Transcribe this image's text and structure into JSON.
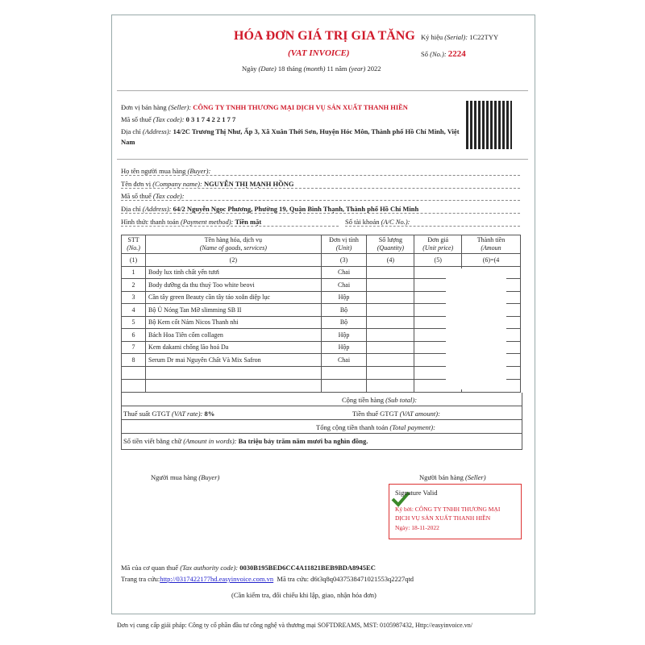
{
  "header": {
    "title": "HÓA ĐƠN GIÁ TRỊ GIA TĂNG",
    "subtitle": "(VAT INVOICE)",
    "serial": {
      "label": "Ký hiệu",
      "label_en": "(Serial):",
      "value": "1C22TYY"
    },
    "number": {
      "label": "Số",
      "label_en": "(No.):",
      "value": "2224"
    },
    "date": {
      "label": "Ngày",
      "label_en": "(Date)",
      "day": "18",
      "month_label": "tháng",
      "month_label_en": "(month)",
      "month": "11",
      "year_label": "năm",
      "year_label_en": "(year)",
      "year": "2022"
    }
  },
  "seller": [
    {
      "label": "Đơn vị bán hàng",
      "label_en": "(Seller):",
      "value": "CÔNG TY TNHH THƯƠNG MẠI DỊCH VỤ SẢN XUẤT THANH HIỀN"
    },
    {
      "label": "Mã số thuế",
      "label_en": "(Tax code):",
      "value": "0 3 1 7 4 2 2 1 7 7"
    },
    {
      "label": "Địa chỉ",
      "label_en": "(Address):",
      "value": "14/2C Trương Thị Như, Ấp 3, Xã Xuân Thới Sơn, Huyện Hóc Môn, Thành phố Hồ Chí Minh, Việt Nam"
    }
  ],
  "buyer": [
    {
      "label": "Họ tên người mua hàng",
      "label_en": "(Buyer):"
    },
    {
      "label": "Tên đơn vị",
      "label_en": "(Company name):",
      "value": "NGUYỄN THỊ MẠNH HỒNG"
    },
    {
      "label": "Mã số thuế",
      "label_en": "(Tax code):"
    },
    {
      "label": "Địa chỉ",
      "label_en": "(Address):",
      "value": "64/2 Nguyễn Ngọc Phương, Phường 19, Quận Bình Thạnh, Thành phố Hồ Chí Minh"
    },
    {
      "label": "Hình thức thanh toán",
      "label_en": "(Payment method):",
      "value": "Tiền mặt"
    }
  ],
  "account": {
    "label": "Số tài khoản",
    "label_en": "(A/C No.):"
  },
  "table": {
    "columns": [
      {
        "vi": "STT",
        "en": "(No.)",
        "num": "(1)"
      },
      {
        "vi": "Tên hàng hóa, dịch vụ",
        "en": "(Name of goods, services)",
        "num": "(2)"
      },
      {
        "vi": "Đơn vị tính",
        "en": "(Unit)",
        "num": "(3)"
      },
      {
        "vi": "Số lượng",
        "en": "(Quantity)",
        "num": "(4)"
      },
      {
        "vi": "Đơn giá",
        "en": "(Unit price)",
        "num": "(5)"
      },
      {
        "vi": "Thành tiền",
        "en": "(Amoun",
        "num": "(6)=(4"
      }
    ],
    "rows": [
      [
        "1",
        "Body lux tinh chất yến tươi",
        "Chai"
      ],
      [
        "2",
        "Body dưỡng da thu thuỷ Too white beovi",
        "Chai"
      ],
      [
        "3",
        "Cần tây green Beauty cần tây táo xoắn diệp lục",
        "Hộp"
      ],
      [
        "4",
        "Bộ Ủ Nóng Tan Mỡ slimming SB II",
        "Bộ"
      ],
      [
        "5",
        "Bộ Kem cốt Nám Nicos Thanh nhi",
        "Bộ"
      ],
      [
        "6",
        "Bách Hoa Tiên cốm collagen",
        "Hộp"
      ],
      [
        "7",
        "Kem dakami chống lão hoá Da",
        "Hộp"
      ],
      [
        "8",
        "Serum Dr mai Nguyên Chất Và Mix Safron",
        "Chai"
      ]
    ]
  },
  "totals": {
    "subtotal": {
      "label": "Cộng tiền hàng",
      "label_en": "(Sub total):"
    },
    "vat_rate": {
      "label": "Thuế suất GTGT",
      "label_en": "(VAT rate):",
      "value": "8%"
    },
    "vat_amount": {
      "label": "Tiền thuế GTGT",
      "label_en": "(VAT amount):"
    },
    "total": {
      "label": "Tổng cộng tiền thanh toán",
      "label_en": "(Total payment):"
    },
    "words": {
      "label": "Số tiền viết bằng chữ",
      "label_en": "(Amount in words):",
      "value": "Ba triệu bảy trăm năm mươi ba nghìn đồng."
    }
  },
  "signatures": {
    "buyer": {
      "label": "Người mua hàng",
      "label_en": "(Buyer)"
    },
    "seller": {
      "label": "Người bán hàng",
      "label_en": "(Seller)"
    },
    "stamp": {
      "status": "Signature Valid",
      "signed_by": "Ký bởi: CÔNG TY TNHH THƯƠNG MẠI DỊCH VỤ SẢN XUẤT THANH HIỀN",
      "date": "Ngày: 18-11-2022"
    }
  },
  "footer": {
    "authority": {
      "label": "Mã của cơ quan thuế",
      "label_en": "(Tax authority code):",
      "value": "0030B195BED6CC4A11821BEB9BDA8945EC"
    },
    "lookup_page": {
      "label": "Trang tra cứu:",
      "value": "http://0317422177hd.easyinvoice.com.vn"
    },
    "lookup_code": {
      "label": "Mã tra cứu:",
      "value": "d6t3q8q0437538471021553q2227qtd"
    },
    "note": "(Cần kiểm tra, đối chiếu khi lập, giao, nhận hóa đơn)",
    "provider": "Đơn vị cung cấp giải pháp: Công ty cổ phần đầu tư công nghệ và thương mại SOFTDREAMS, MST: 0105987432, Http://easyinvoice.vn/"
  }
}
